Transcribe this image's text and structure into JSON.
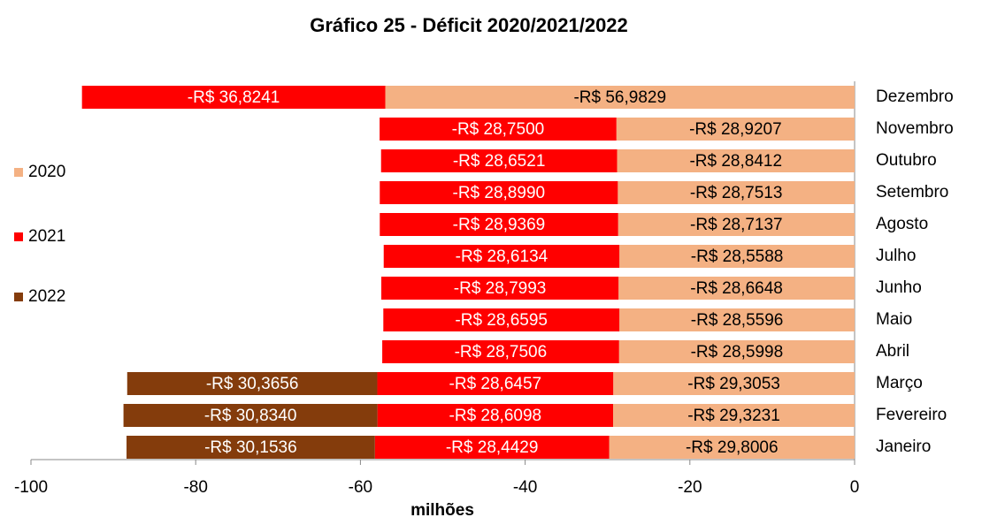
{
  "chart_data": {
    "type": "bar",
    "orientation": "horizontal",
    "stacked": true,
    "title": "Gráfico 25 - Déficit 2020/2021/2022",
    "x_label": "milhões",
    "categories": [
      "Janeiro",
      "Fevereiro",
      "Março",
      "Abril",
      "Maio",
      "Junho",
      "Julho",
      "Agosto",
      "Setembro",
      "Outubro",
      "Novembro",
      "Dezembro"
    ],
    "series": [
      {
        "name": "2020",
        "color": "#f4b183",
        "label_color": "#000000",
        "values": [
          -29.8006,
          -29.3231,
          -29.3053,
          -28.5998,
          -28.5596,
          -28.6648,
          -28.5588,
          -28.7137,
          -28.7513,
          -28.8412,
          -28.9207,
          -56.9829
        ],
        "value_labels": [
          "-R$ 29,8006",
          "-R$ 29,3231",
          "-R$ 29,3053",
          "-R$ 28,5998",
          "-R$ 28,5596",
          "-R$ 28,6648",
          "-R$ 28,5588",
          "-R$ 28,7137",
          "-R$ 28,7513",
          "-R$ 28,8412",
          "-R$ 28,9207",
          "-R$ 56,9829"
        ]
      },
      {
        "name": "2021",
        "color": "#ff0000",
        "label_color": "#ffffff",
        "values": [
          -28.4429,
          -28.6098,
          -28.6457,
          -28.7506,
          -28.6595,
          -28.7993,
          -28.6134,
          -28.9369,
          -28.899,
          -28.6521,
          -28.75,
          -36.8241
        ],
        "value_labels": [
          "-R$ 28,4429",
          "-R$ 28,6098",
          "-R$ 28,6457",
          "-R$ 28,7506",
          "-R$ 28,6595",
          "-R$ 28,7993",
          "-R$ 28,6134",
          "-R$ 28,9369",
          "-R$ 28,8990",
          "-R$ 28,6521",
          "-R$ 28,7500",
          "-R$ 36,8241"
        ]
      },
      {
        "name": "2022",
        "color": "#843c0c",
        "label_color": "#ffffff",
        "values": [
          -30.1536,
          -30.834,
          -30.3656,
          null,
          null,
          null,
          null,
          null,
          null,
          null,
          null,
          null
        ],
        "value_labels": [
          "-R$ 30,1536",
          "-R$ 30,8340",
          "-R$ 30,3656",
          null,
          null,
          null,
          null,
          null,
          null,
          null,
          null,
          null
        ]
      }
    ],
    "xlim": [
      -100,
      0
    ],
    "xticks": [
      -100,
      -80,
      -60,
      -40,
      -20,
      0
    ],
    "legend": "left"
  }
}
